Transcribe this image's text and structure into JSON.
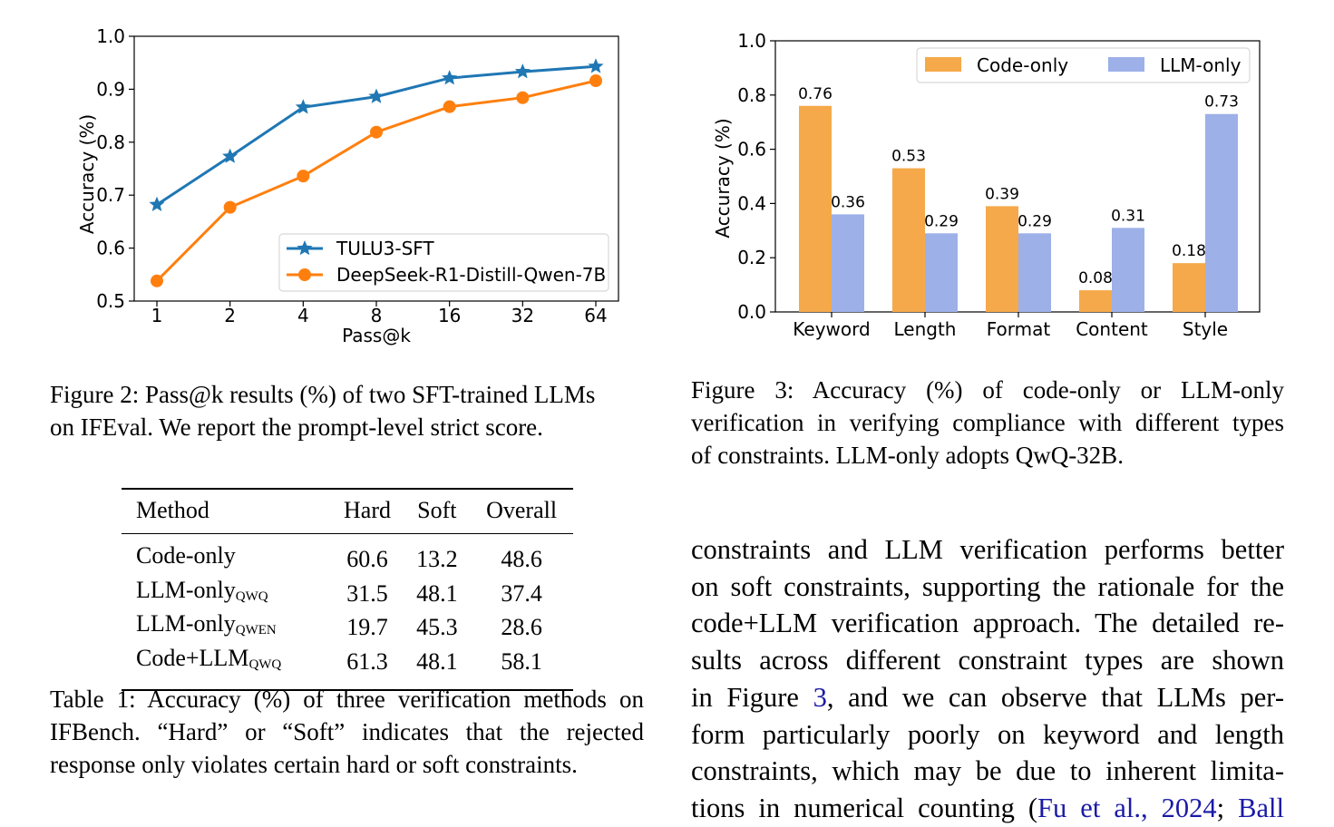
{
  "figure2": {
    "caption_lines": [
      "Figure 2: Pass@k results (%) of two SFT-trained LLMs",
      "on IFEval. We report the prompt-level strict score."
    ],
    "chart_data": {
      "type": "line",
      "x": [
        "1",
        "2",
        "4",
        "8",
        "16",
        "32",
        "64"
      ],
      "series": [
        {
          "name": "TULU3-SFT",
          "values": [
            0.682,
            0.773,
            0.866,
            0.886,
            0.921,
            0.933,
            0.943
          ],
          "color": "#1f77b4",
          "marker": "star"
        },
        {
          "name": "DeepSeek-R1-Distill-Qwen-7B",
          "values": [
            0.538,
            0.677,
            0.736,
            0.819,
            0.867,
            0.884,
            0.916
          ],
          "color": "#ff7f0e",
          "marker": "circle"
        }
      ],
      "xlabel": "Pass@k",
      "ylabel": "Accuracy (%)",
      "ylim": [
        0.5,
        1.0
      ],
      "yticks": [
        "0.5",
        "0.6",
        "0.7",
        "0.8",
        "0.9",
        "1.0"
      ],
      "legend": "bottom-right",
      "grid": false
    }
  },
  "figure3": {
    "caption_lines": [
      "Figure 3: Accuracy (%) of code-only or LLM-only",
      "verification in verifying compliance with different types",
      "of constraints. LLM-only adopts QwQ-32B."
    ],
    "chart_data": {
      "type": "bar",
      "categories": [
        "Keyword",
        "Length",
        "Format",
        "Content",
        "Style"
      ],
      "series": [
        {
          "name": "Code-only",
          "values": [
            0.76,
            0.53,
            0.39,
            0.08,
            0.18
          ],
          "labels": [
            "0.76",
            "0.53",
            "0.39",
            "0.08",
            "0.18"
          ],
          "color": "#f5a94a"
        },
        {
          "name": "LLM-only",
          "values": [
            0.36,
            0.29,
            0.29,
            0.31,
            0.73
          ],
          "labels": [
            "0.36",
            "0.29",
            "0.29",
            "0.31",
            "0.73"
          ],
          "color": "#9db0e8"
        }
      ],
      "ylabel": "Accuracy (%)",
      "ylim": [
        0.0,
        1.0
      ],
      "yticks": [
        "0.0",
        "0.2",
        "0.4",
        "0.6",
        "0.8",
        "1.0"
      ],
      "legend": "top-right",
      "grid": false
    }
  },
  "table1": {
    "headers": [
      "Method",
      "Hard",
      "Soft",
      "Overall"
    ],
    "rows": [
      {
        "method": "Code-only",
        "sub": "",
        "hard": "60.6",
        "soft": "13.2",
        "overall": "48.6"
      },
      {
        "method": "LLM-only",
        "sub": "QWQ",
        "hard": "31.5",
        "soft": "48.1",
        "overall": "37.4"
      },
      {
        "method": "LLM-only",
        "sub": "QWEN",
        "hard": "19.7",
        "soft": "45.3",
        "overall": "28.6"
      },
      {
        "method": "Code+LLM",
        "sub": "QWQ",
        "hard": "61.3",
        "soft": "48.1",
        "overall": "58.1"
      }
    ],
    "caption_lines": [
      "Table 1: Accuracy (%) of three verification methods on",
      "IFBench. “Hard” or “Soft” indicates that the rejected",
      "response only violates certain hard or soft constraints."
    ]
  },
  "body": {
    "line1": "constraints and LLM verification performs better",
    "line2": "on soft constraints, supporting the rationale for the",
    "line3": "code+LLM verification approach. The detailed re-",
    "line4": "sults across different constraint types are shown",
    "line5_pre": "in Figure ",
    "line5_ref": "3",
    "line5_post": ", and we can observe that LLMs per-",
    "line6": "form particularly poorly on keyword and length",
    "line7": "constraints, which may be due to inherent limita-",
    "line8_pre": "tions in numerical counting (",
    "line8_ref1": "Fu et al., 2024",
    "line8_mid": "; ",
    "line8_ref2": "Ball"
  }
}
